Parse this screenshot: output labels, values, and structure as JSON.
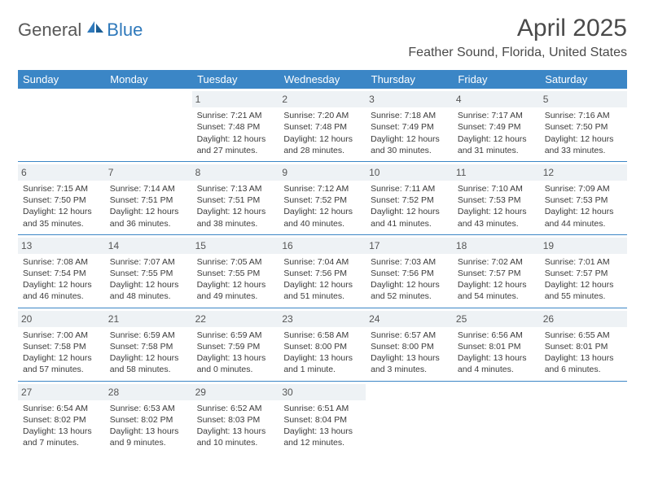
{
  "brand": {
    "general": "General",
    "blue": "Blue"
  },
  "colors": {
    "header_bg": "#3b86c6",
    "header_text": "#ffffff",
    "daynum_bg": "#eef2f5",
    "daynum_text": "#555555",
    "divider": "#3b86c6",
    "body_text": "#3b3b3b",
    "title_text": "#4a4a4a",
    "logo_gray": "#585858",
    "logo_blue": "#2f79bb"
  },
  "title": "April 2025",
  "location": "Feather Sound, Florida, United States",
  "weekday_labels": [
    "Sunday",
    "Monday",
    "Tuesday",
    "Wednesday",
    "Thursday",
    "Friday",
    "Saturday"
  ],
  "weeks": [
    [
      null,
      null,
      {
        "n": "1",
        "sr": "Sunrise: 7:21 AM",
        "ss": "Sunset: 7:48 PM",
        "d1": "Daylight: 12 hours",
        "d2": "and 27 minutes."
      },
      {
        "n": "2",
        "sr": "Sunrise: 7:20 AM",
        "ss": "Sunset: 7:48 PM",
        "d1": "Daylight: 12 hours",
        "d2": "and 28 minutes."
      },
      {
        "n": "3",
        "sr": "Sunrise: 7:18 AM",
        "ss": "Sunset: 7:49 PM",
        "d1": "Daylight: 12 hours",
        "d2": "and 30 minutes."
      },
      {
        "n": "4",
        "sr": "Sunrise: 7:17 AM",
        "ss": "Sunset: 7:49 PM",
        "d1": "Daylight: 12 hours",
        "d2": "and 31 minutes."
      },
      {
        "n": "5",
        "sr": "Sunrise: 7:16 AM",
        "ss": "Sunset: 7:50 PM",
        "d1": "Daylight: 12 hours",
        "d2": "and 33 minutes."
      }
    ],
    [
      {
        "n": "6",
        "sr": "Sunrise: 7:15 AM",
        "ss": "Sunset: 7:50 PM",
        "d1": "Daylight: 12 hours",
        "d2": "and 35 minutes."
      },
      {
        "n": "7",
        "sr": "Sunrise: 7:14 AM",
        "ss": "Sunset: 7:51 PM",
        "d1": "Daylight: 12 hours",
        "d2": "and 36 minutes."
      },
      {
        "n": "8",
        "sr": "Sunrise: 7:13 AM",
        "ss": "Sunset: 7:51 PM",
        "d1": "Daylight: 12 hours",
        "d2": "and 38 minutes."
      },
      {
        "n": "9",
        "sr": "Sunrise: 7:12 AM",
        "ss": "Sunset: 7:52 PM",
        "d1": "Daylight: 12 hours",
        "d2": "and 40 minutes."
      },
      {
        "n": "10",
        "sr": "Sunrise: 7:11 AM",
        "ss": "Sunset: 7:52 PM",
        "d1": "Daylight: 12 hours",
        "d2": "and 41 minutes."
      },
      {
        "n": "11",
        "sr": "Sunrise: 7:10 AM",
        "ss": "Sunset: 7:53 PM",
        "d1": "Daylight: 12 hours",
        "d2": "and 43 minutes."
      },
      {
        "n": "12",
        "sr": "Sunrise: 7:09 AM",
        "ss": "Sunset: 7:53 PM",
        "d1": "Daylight: 12 hours",
        "d2": "and 44 minutes."
      }
    ],
    [
      {
        "n": "13",
        "sr": "Sunrise: 7:08 AM",
        "ss": "Sunset: 7:54 PM",
        "d1": "Daylight: 12 hours",
        "d2": "and 46 minutes."
      },
      {
        "n": "14",
        "sr": "Sunrise: 7:07 AM",
        "ss": "Sunset: 7:55 PM",
        "d1": "Daylight: 12 hours",
        "d2": "and 48 minutes."
      },
      {
        "n": "15",
        "sr": "Sunrise: 7:05 AM",
        "ss": "Sunset: 7:55 PM",
        "d1": "Daylight: 12 hours",
        "d2": "and 49 minutes."
      },
      {
        "n": "16",
        "sr": "Sunrise: 7:04 AM",
        "ss": "Sunset: 7:56 PM",
        "d1": "Daylight: 12 hours",
        "d2": "and 51 minutes."
      },
      {
        "n": "17",
        "sr": "Sunrise: 7:03 AM",
        "ss": "Sunset: 7:56 PM",
        "d1": "Daylight: 12 hours",
        "d2": "and 52 minutes."
      },
      {
        "n": "18",
        "sr": "Sunrise: 7:02 AM",
        "ss": "Sunset: 7:57 PM",
        "d1": "Daylight: 12 hours",
        "d2": "and 54 minutes."
      },
      {
        "n": "19",
        "sr": "Sunrise: 7:01 AM",
        "ss": "Sunset: 7:57 PM",
        "d1": "Daylight: 12 hours",
        "d2": "and 55 minutes."
      }
    ],
    [
      {
        "n": "20",
        "sr": "Sunrise: 7:00 AM",
        "ss": "Sunset: 7:58 PM",
        "d1": "Daylight: 12 hours",
        "d2": "and 57 minutes."
      },
      {
        "n": "21",
        "sr": "Sunrise: 6:59 AM",
        "ss": "Sunset: 7:58 PM",
        "d1": "Daylight: 12 hours",
        "d2": "and 58 minutes."
      },
      {
        "n": "22",
        "sr": "Sunrise: 6:59 AM",
        "ss": "Sunset: 7:59 PM",
        "d1": "Daylight: 13 hours",
        "d2": "and 0 minutes."
      },
      {
        "n": "23",
        "sr": "Sunrise: 6:58 AM",
        "ss": "Sunset: 8:00 PM",
        "d1": "Daylight: 13 hours",
        "d2": "and 1 minute."
      },
      {
        "n": "24",
        "sr": "Sunrise: 6:57 AM",
        "ss": "Sunset: 8:00 PM",
        "d1": "Daylight: 13 hours",
        "d2": "and 3 minutes."
      },
      {
        "n": "25",
        "sr": "Sunrise: 6:56 AM",
        "ss": "Sunset: 8:01 PM",
        "d1": "Daylight: 13 hours",
        "d2": "and 4 minutes."
      },
      {
        "n": "26",
        "sr": "Sunrise: 6:55 AM",
        "ss": "Sunset: 8:01 PM",
        "d1": "Daylight: 13 hours",
        "d2": "and 6 minutes."
      }
    ],
    [
      {
        "n": "27",
        "sr": "Sunrise: 6:54 AM",
        "ss": "Sunset: 8:02 PM",
        "d1": "Daylight: 13 hours",
        "d2": "and 7 minutes."
      },
      {
        "n": "28",
        "sr": "Sunrise: 6:53 AM",
        "ss": "Sunset: 8:02 PM",
        "d1": "Daylight: 13 hours",
        "d2": "and 9 minutes."
      },
      {
        "n": "29",
        "sr": "Sunrise: 6:52 AM",
        "ss": "Sunset: 8:03 PM",
        "d1": "Daylight: 13 hours",
        "d2": "and 10 minutes."
      },
      {
        "n": "30",
        "sr": "Sunrise: 6:51 AM",
        "ss": "Sunset: 8:04 PM",
        "d1": "Daylight: 13 hours",
        "d2": "and 12 minutes."
      },
      null,
      null,
      null
    ]
  ]
}
